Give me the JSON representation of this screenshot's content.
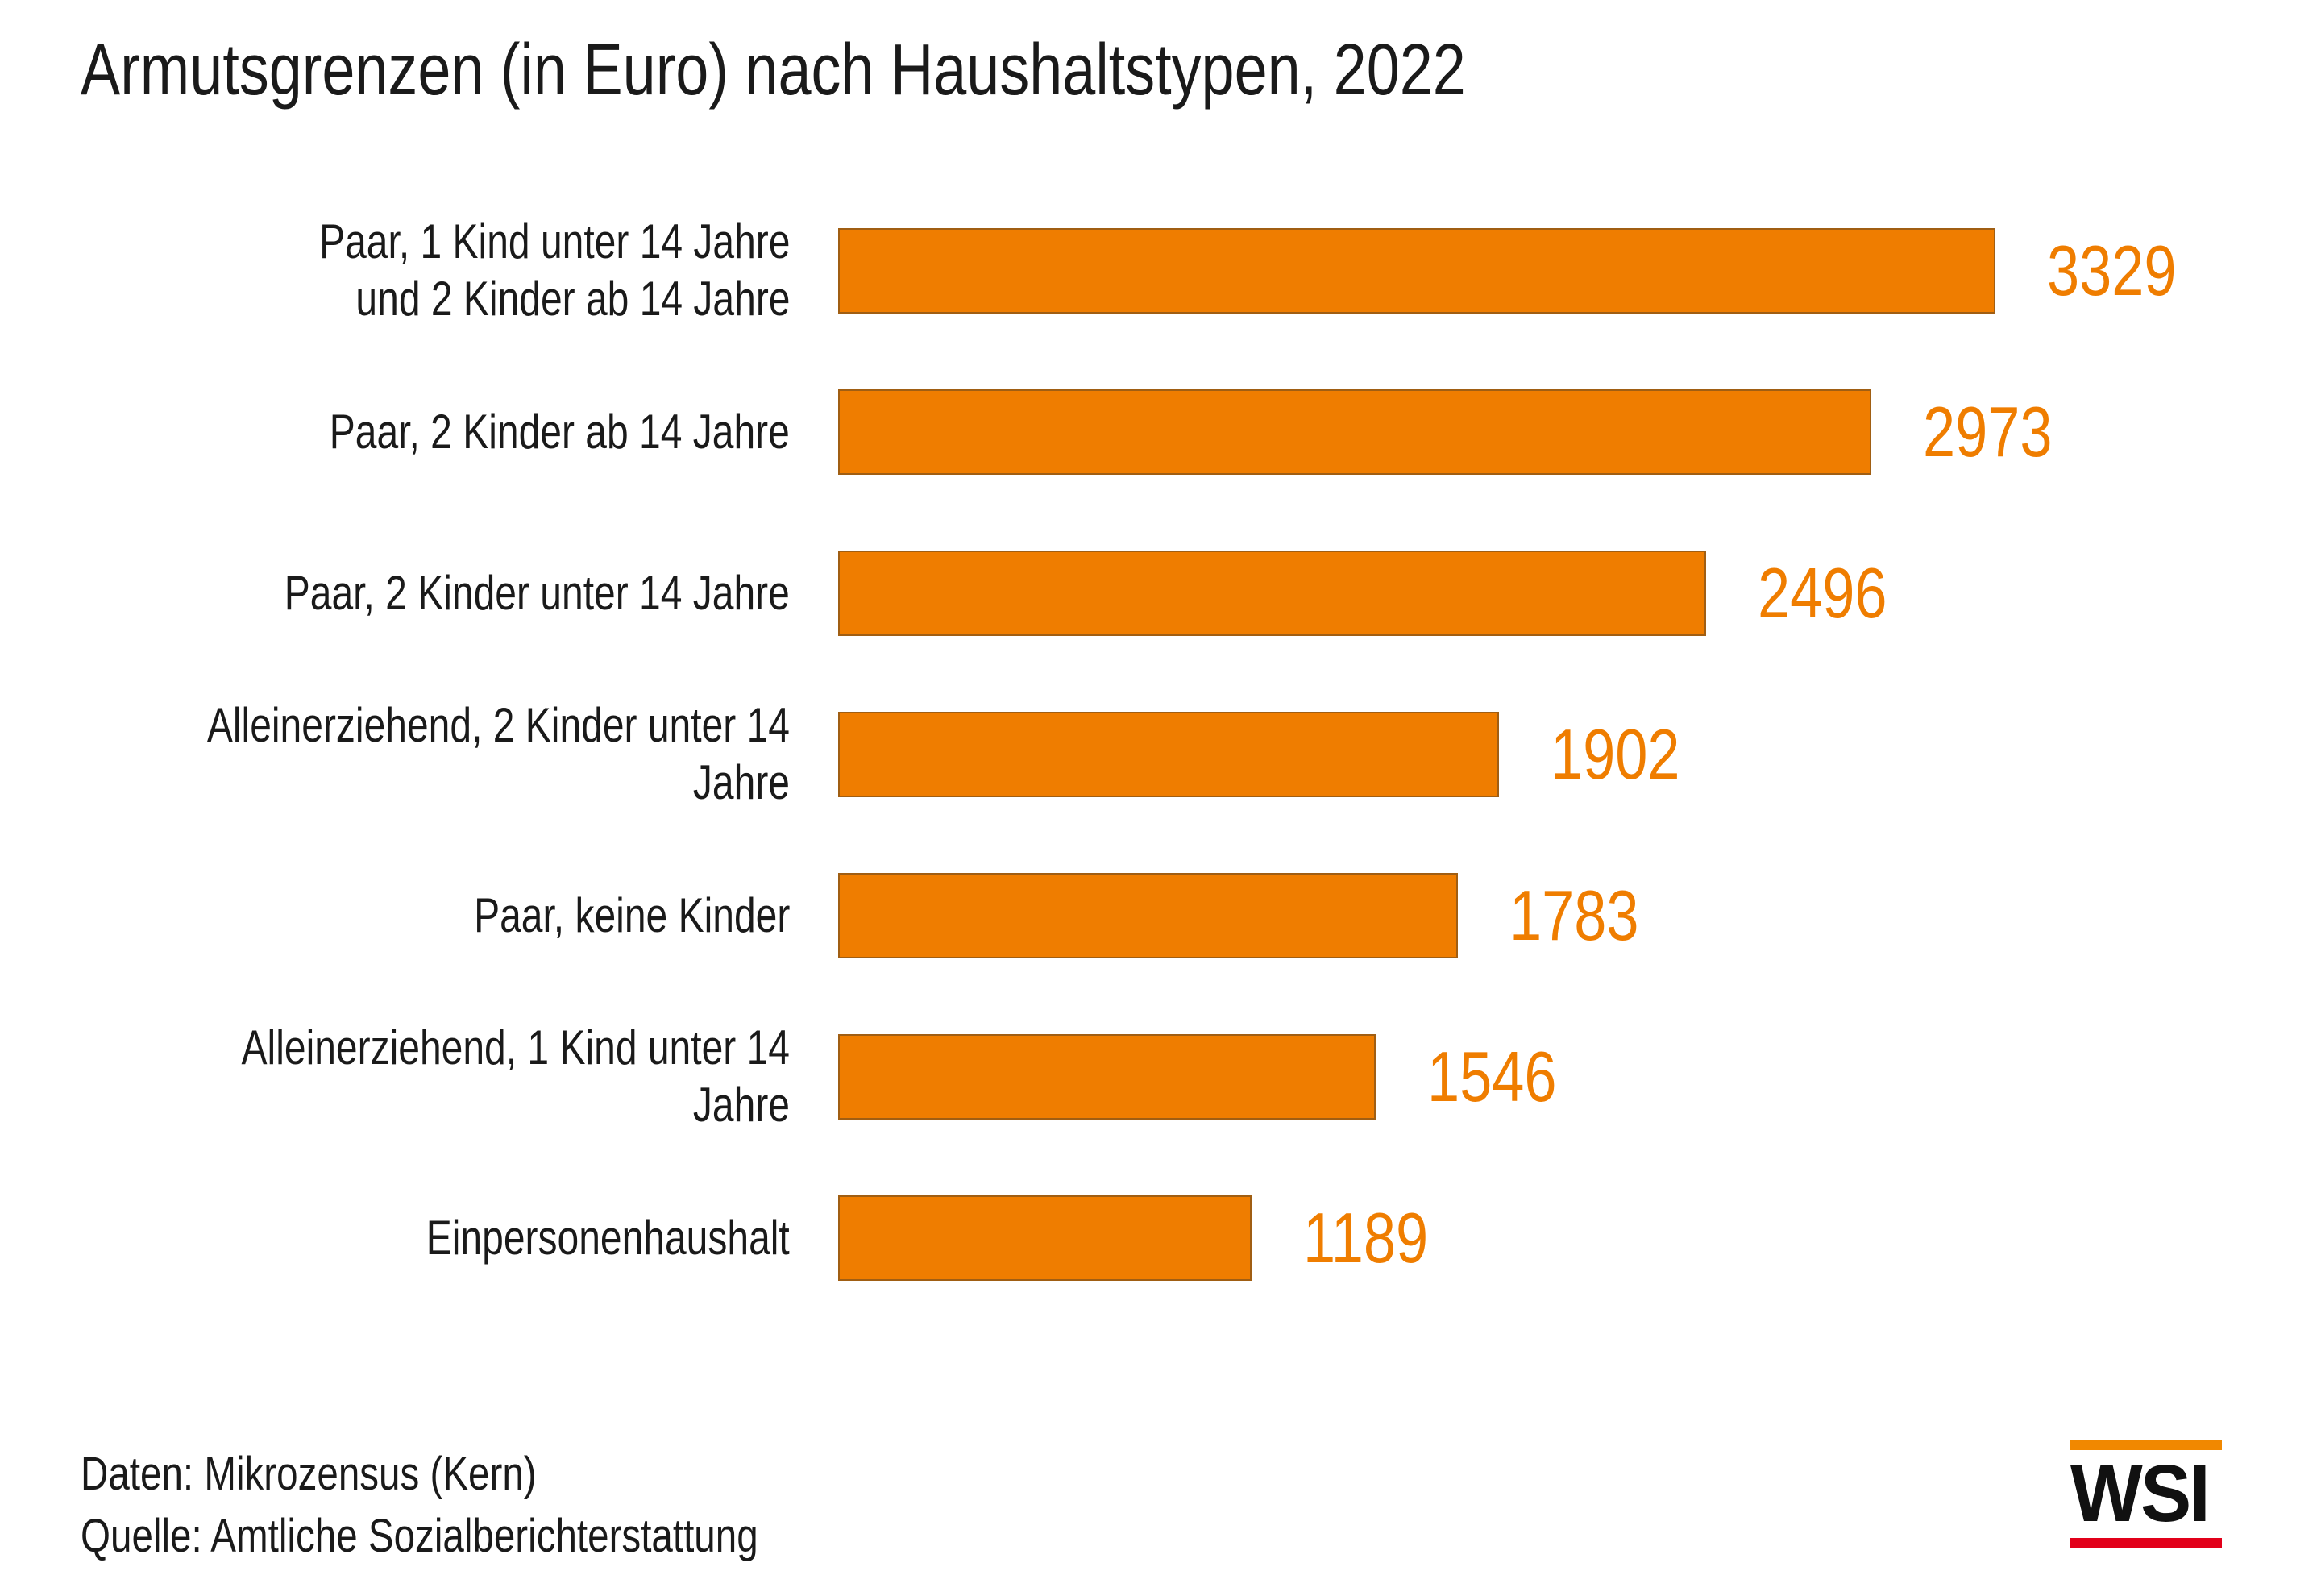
{
  "title": "Armutsgrenzen (in Euro) nach Haushaltstypen, 2022",
  "footer": {
    "line1": "Daten: Mikrozensus (Kern)",
    "line2": "Quelle: Amtliche Sozialberichterstattung"
  },
  "logo": {
    "text": "WSI",
    "top_bar_color": "#F18800",
    "bottom_bar_color": "#E2001A",
    "text_color": "#111111"
  },
  "colors": {
    "bar": "#EF7D00",
    "value_label": "#EF7D00",
    "text": "#1a1a1a"
  },
  "chart_data": {
    "type": "bar",
    "orientation": "horizontal",
    "title": "Armutsgrenzen (in Euro) nach Haushaltstypen, 2022",
    "unit": "Euro",
    "categories": [
      "Paar, 1 Kind unter 14 Jahre\nund 2 Kinder ab 14 Jahre",
      "Paar, 2 Kinder ab 14 Jahre",
      "Paar, 2 Kinder unter 14 Jahre",
      "Alleinerziehend, 2 Kinder unter 14 Jahre",
      "Paar, keine Kinder",
      "Alleinerziehend, 1 Kind unter 14 Jahre",
      "Einpersonenhaushalt"
    ],
    "values": [
      3329,
      2973,
      2496,
      1902,
      1783,
      1546,
      1189
    ],
    "xlim": [
      0,
      3329
    ],
    "value_labels_shown": true,
    "axis_visible": false,
    "grid": false,
    "legend": false,
    "source_line1": "Daten: Mikrozensus (Kern)",
    "source_line2": "Quelle: Amtliche Sozialberichterstattung"
  }
}
